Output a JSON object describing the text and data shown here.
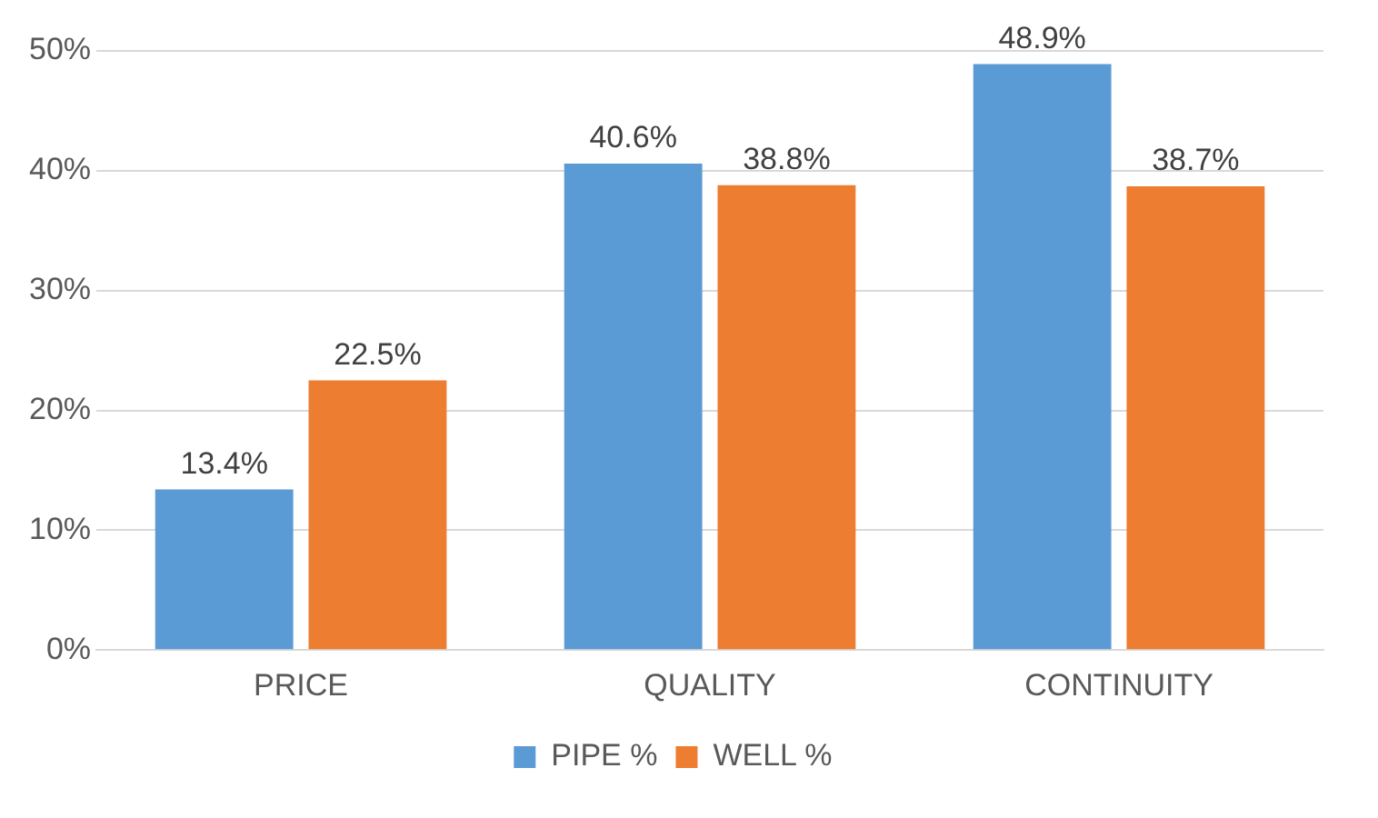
{
  "chart_data": {
    "type": "bar",
    "categories": [
      "PRICE",
      "QUALITY",
      "CONTINUITY"
    ],
    "series": [
      {
        "name": "PIPE %",
        "color": "#5b9bd5",
        "values": [
          13.4,
          40.6,
          48.9
        ],
        "value_labels": [
          "13.4%",
          "40.6%",
          "48.9%"
        ]
      },
      {
        "name": "WELL %",
        "color": "#ed7d31",
        "values": [
          22.5,
          38.8,
          38.7
        ],
        "value_labels": [
          "22.5%",
          "38.8%",
          "38.7%"
        ]
      }
    ],
    "ylim": [
      0,
      50
    ],
    "yticks": [
      {
        "value": 0,
        "label": "0%"
      },
      {
        "value": 10,
        "label": "10%"
      },
      {
        "value": 20,
        "label": "20%"
      },
      {
        "value": 30,
        "label": "30%"
      },
      {
        "value": 40,
        "label": "40%"
      },
      {
        "value": 50,
        "label": "50%"
      }
    ],
    "grid": "y",
    "legend": "bottom"
  }
}
